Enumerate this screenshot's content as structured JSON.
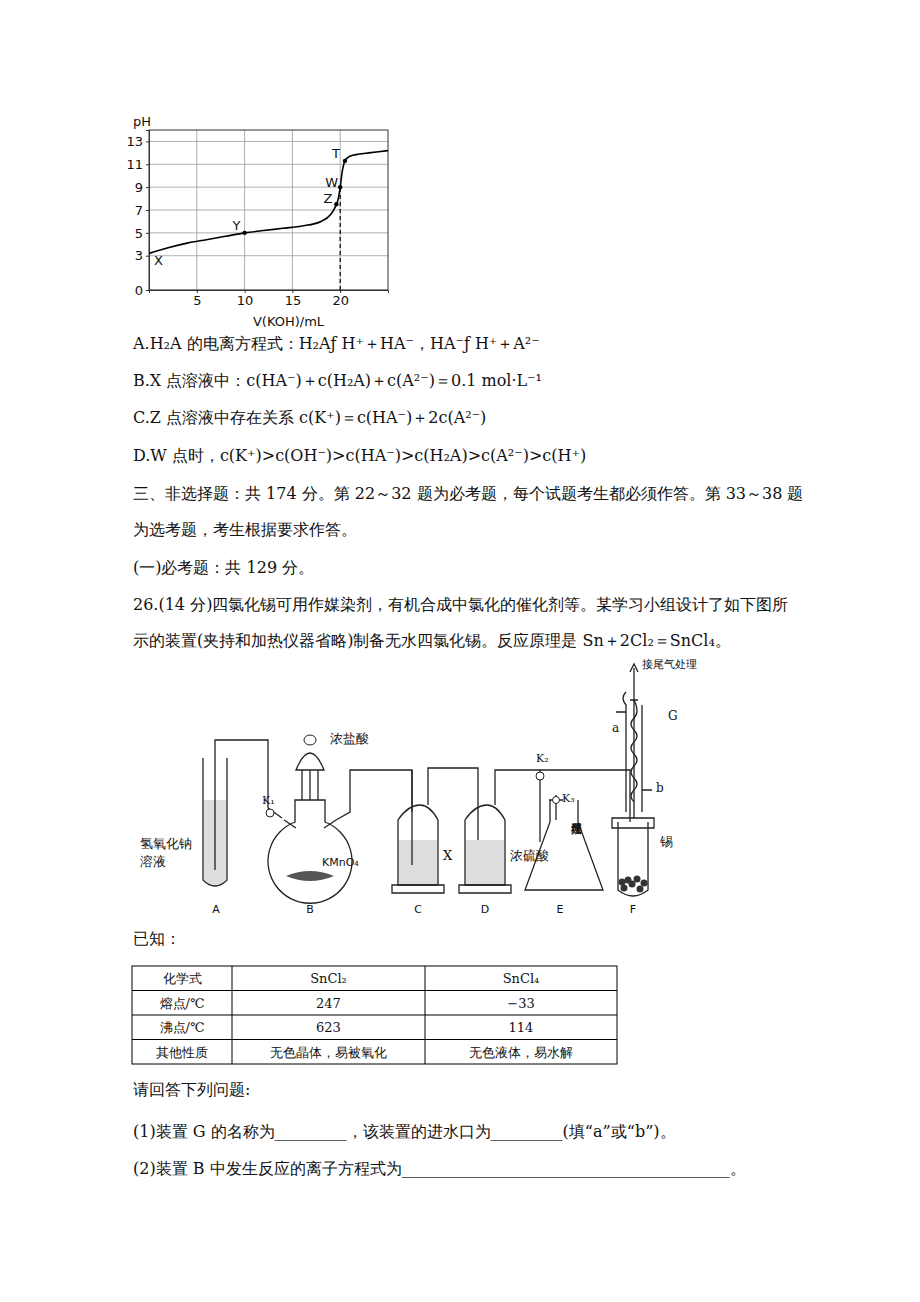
{
  "chart_data": {
    "type": "line",
    "y_label": "pH",
    "x_label": "V(KOH)/mL",
    "xlim": [
      0,
      25
    ],
    "ylim": [
      0,
      14
    ],
    "xticks": [
      5,
      10,
      15,
      20
    ],
    "yticks": [
      0,
      3,
      5,
      7,
      9,
      11,
      13
    ],
    "grid": true,
    "x": [
      0,
      2,
      4,
      6,
      8,
      10,
      12,
      14,
      16,
      18,
      19,
      19.5,
      19.8,
      20,
      20.2,
      20.5,
      21,
      22,
      23,
      25
    ],
    "values": [
      3.2,
      3.7,
      4.1,
      4.4,
      4.7,
      5.0,
      5.2,
      5.4,
      5.6,
      6.0,
      6.6,
      7.3,
      8.0,
      9.0,
      10.3,
      11.3,
      11.7,
      11.9,
      12.0,
      12.2
    ],
    "color": "#000000",
    "annotations": [
      {
        "text": "X",
        "x": 0,
        "y": 3.2
      },
      {
        "text": "Y",
        "x": 10,
        "y": 5.0
      },
      {
        "text": "Z",
        "x": 19.6,
        "y": 7.5
      },
      {
        "text": "W",
        "x": 20,
        "y": 9.0,
        "line_style": "dashed"
      },
      {
        "text": "T",
        "x": 20.5,
        "y": 11.3
      }
    ]
  },
  "document": {
    "options": [
      "A.H₂A 的电离方程式：H₂Aƒ  H⁺＋HA⁻，HA⁻ƒ  H⁺＋A²⁻",
      "B.X 点溶液中：c(HA⁻)＋c(H₂A)＋c(A²⁻)＝0.1 mol·L⁻¹",
      "C.Z 点溶液中存在关系 c(K⁺)＝c(HA⁻)＋2c(A²⁻)",
      "D.W 点时，c(K⁺)>c(OH⁻)>c(HA⁻)>c(H₂A)>c(A²⁻)>c(H⁺)"
    ],
    "section": [
      "三、非选择题：共 174 分。第 22～32 题为必考题，每个试题考生都必须作答。第 33～38 题",
      "为选考题，考生根据要求作答。"
    ],
    "subsection": "(一)必考题：共 129 分。",
    "question": [
      "26.(14 分)四氯化锡可用作媒染剂，有机合成中氯化的催化剂等。某学习小组设计了如下图所",
      "示的装置(夹持和加热仪器省略)制备无水四氯化锡。反应原理是 Sn＋2Cl₂＝SnCl₄。"
    ],
    "figure": {
      "units": [
        "A",
        "B",
        "C",
        "D",
        "E",
        "F"
      ],
      "naoh": [
        "氢氧化钠",
        "溶液"
      ],
      "acid": "浓盐酸",
      "kmno4": "KMnO₄",
      "k1": "K₁",
      "k2": "K₂",
      "k3": "K₃",
      "x": "X",
      "h2so4": "浓硫酸",
      "tail_e": "接尾气处理",
      "tail_g": "接尾气处理",
      "tin": "锡",
      "g": "G",
      "a": "a",
      "b": "b"
    },
    "known": "已知：",
    "table": {
      "rows": [
        [
          "化学式",
          "SnCl₂",
          "SnCl₄"
        ],
        [
          "熔点/℃",
          "247",
          "−33"
        ],
        [
          "沸点/℃",
          "623",
          "114"
        ],
        [
          "其他性质",
          "无色晶体，易被氧化",
          "无色液体，易水解"
        ]
      ]
    },
    "prompt": "请回答下列问题:",
    "items": [
      "(1)装置 G 的名称为_________，该装置的进水口为_________(填“a”或“b”)。",
      "(2)装置 B 中发生反应的离子方程式为_________________________________________。"
    ]
  }
}
